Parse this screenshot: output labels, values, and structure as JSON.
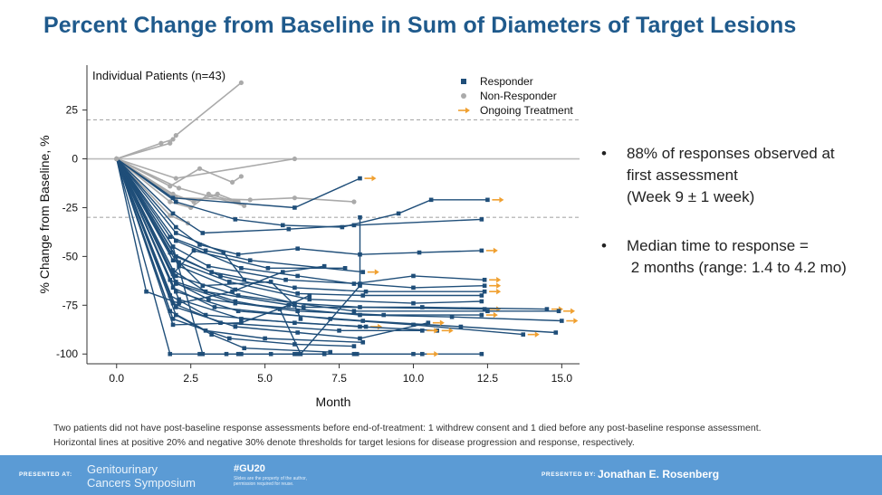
{
  "slide": {
    "title": "Percent Change from Baseline in Sum of Diameters of Target Lesions",
    "bullets": [
      {
        "lines": [
          "88% of responses observed at",
          "first assessment",
          "(Week 9 ± 1 week)"
        ]
      },
      {
        "lines": [
          "Median time to response =",
          " 2 months (range: 1.4 to 4.2 mo)"
        ]
      }
    ],
    "bullet_mark": "•",
    "footnote": [
      "Two patients did not have post-baseline response assessments before end-of-treatment: 1 withdrew consent and 1 died before any post-baseline response assessment.",
      "Horizontal lines at positive 20% and negative 30% denote thresholds for target lesions for disease progression and response, respectively."
    ],
    "footer": {
      "presented_at": "PRESENTED AT:",
      "conference_line1": "Genitourinary",
      "conference_line2": "Cancers Symposium",
      "hashtag": "#GU20",
      "hashtag_sub1": "Slides are the property of the author,",
      "hashtag_sub2": "permission required for reuse.",
      "presented_by": "PRESENTED BY:",
      "presenter": "Jonathan E. Rosenberg"
    }
  },
  "chart_data": {
    "type": "line",
    "annotation": "Individual Patients (n=43)",
    "xlabel": "Month",
    "ylabel": "% Change from Baseline, %",
    "xlim": [
      -1,
      15.6
    ],
    "ylim": [
      -105,
      48
    ],
    "xticks": [
      "0.0",
      "2.5",
      "5.0",
      "7.5",
      "10.0",
      "12.5",
      "15.0"
    ],
    "yticks": [
      "25",
      "0",
      "-25",
      "-50",
      "-75",
      "-100"
    ],
    "reference_lines": [
      20,
      0,
      -30
    ],
    "legend": [
      {
        "label": "Responder",
        "marker": "square",
        "color": "#1f4e79"
      },
      {
        "label": "Non-Responder",
        "marker": "circle",
        "color": "#aaaaaa"
      },
      {
        "label": "Ongoing Treatment",
        "marker": "arrow",
        "color": "#f0a030"
      }
    ],
    "legend_position": "top-right",
    "colors": {
      "responder": "#1f4e79",
      "non_responder": "#aaaaaa",
      "ongoing": "#f0a030",
      "zero_line": "#bbbbbb",
      "threshold_line": "#aaaaaa"
    },
    "series_nonresponder": [
      [
        [
          0,
          0
        ],
        [
          1.8,
          8
        ],
        [
          2.0,
          12
        ],
        [
          4.2,
          39
        ]
      ],
      [
        [
          0,
          0
        ],
        [
          1.5,
          8
        ],
        [
          1.9,
          10
        ]
      ],
      [
        [
          0,
          0
        ],
        [
          2.0,
          -10
        ],
        [
          6.0,
          0
        ]
      ],
      [
        [
          0,
          0
        ],
        [
          1.8,
          -14
        ],
        [
          2.8,
          -5
        ],
        [
          3.9,
          -12
        ],
        [
          4.2,
          -9
        ]
      ],
      [
        [
          0,
          0
        ],
        [
          1.9,
          -18
        ],
        [
          2.6,
          -22
        ],
        [
          3.4,
          -18
        ],
        [
          4.1,
          -22
        ]
      ],
      [
        [
          0,
          0
        ],
        [
          2.0,
          -20
        ],
        [
          4.5,
          -21
        ],
        [
          6.0,
          -20
        ],
        [
          8.0,
          -22
        ]
      ],
      [
        [
          0,
          0
        ],
        [
          1.8,
          -22
        ],
        [
          2.5,
          -25
        ],
        [
          3.1,
          -18
        ],
        [
          4.0,
          -22
        ]
      ],
      [
        [
          0,
          0
        ],
        [
          2.1,
          -15
        ],
        [
          4.3,
          -24
        ]
      ],
      [
        [
          0,
          0
        ],
        [
          1.8,
          -29
        ],
        [
          2.4,
          -33
        ]
      ]
    ],
    "series_responder": [
      {
        "p": [
          [
            0,
            0
          ],
          [
            1.9,
            -20
          ],
          [
            6.0,
            -25
          ],
          [
            8.2,
            -10
          ]
        ],
        "ongoing": true
      },
      {
        "p": [
          [
            0,
            0
          ],
          [
            2.0,
            -22
          ],
          [
            4.0,
            -31
          ],
          [
            5.6,
            -34
          ],
          [
            7.6,
            -35
          ],
          [
            9.5,
            -28
          ],
          [
            10.6,
            -21
          ],
          [
            12.5,
            -21
          ]
        ],
        "ongoing": true
      },
      {
        "p": [
          [
            0,
            0
          ],
          [
            1.9,
            -28
          ],
          [
            2.9,
            -38
          ],
          [
            5.8,
            -36
          ],
          [
            8.0,
            -34
          ],
          [
            12.3,
            -31
          ]
        ],
        "ongoing": false
      },
      {
        "p": [
          [
            0,
            0
          ],
          [
            2.0,
            -35
          ],
          [
            2.8,
            -44
          ],
          [
            4.1,
            -49
          ],
          [
            6.1,
            -46
          ],
          [
            8.2,
            -49
          ],
          [
            10.2,
            -48
          ],
          [
            12.3,
            -47
          ]
        ],
        "ongoing": true
      },
      {
        "p": [
          [
            0,
            0
          ],
          [
            1.8,
            -40
          ],
          [
            3.0,
            -47
          ],
          [
            4.5,
            -52
          ],
          [
            8.3,
            -58
          ]
        ],
        "ongoing": true
      },
      {
        "p": [
          [
            0,
            0
          ],
          [
            2.0,
            -42
          ],
          [
            4.2,
            -56
          ],
          [
            6.1,
            -60
          ],
          [
            8.0,
            -64
          ],
          [
            10.0,
            -60
          ],
          [
            12.4,
            -62
          ]
        ],
        "ongoing": true
      },
      {
        "p": [
          [
            0,
            0
          ],
          [
            1.9,
            -45
          ],
          [
            3.1,
            -55
          ],
          [
            5.7,
            -62
          ],
          [
            8.2,
            -64
          ],
          [
            10.0,
            -66
          ],
          [
            12.4,
            -65
          ]
        ],
        "ongoing": true
      },
      {
        "p": [
          [
            0,
            0
          ],
          [
            1.8,
            -48
          ],
          [
            3.2,
            -58
          ],
          [
            6.0,
            -66
          ],
          [
            8.4,
            -68
          ],
          [
            12.4,
            -68
          ]
        ],
        "ongoing": true
      },
      {
        "p": [
          [
            0,
            0
          ],
          [
            2.0,
            -50
          ],
          [
            3.5,
            -60
          ],
          [
            6.1,
            -69
          ],
          [
            8.3,
            -70
          ],
          [
            12.3,
            -70
          ]
        ],
        "ongoing": false
      },
      {
        "p": [
          [
            0,
            0
          ],
          [
            1.9,
            -52
          ],
          [
            3.8,
            -63
          ],
          [
            6.5,
            -72
          ],
          [
            10.0,
            -74
          ],
          [
            12.3,
            -73
          ]
        ],
        "ongoing": false
      },
      {
        "p": [
          [
            0,
            0
          ],
          [
            2.1,
            -55
          ],
          [
            4.0,
            -67
          ],
          [
            6.0,
            -74
          ],
          [
            8.2,
            -76
          ],
          [
            12.4,
            -77
          ]
        ],
        "ongoing": true
      },
      {
        "p": [
          [
            0,
            0
          ],
          [
            1.9,
            -57
          ],
          [
            3.0,
            -68
          ],
          [
            6.3,
            -76
          ],
          [
            10.3,
            -76
          ],
          [
            14.5,
            -77
          ]
        ],
        "ongoing": true
      },
      {
        "p": [
          [
            0,
            0
          ],
          [
            2.0,
            -60
          ],
          [
            4.1,
            -70
          ],
          [
            8.0,
            -78
          ],
          [
            12.5,
            -78
          ],
          [
            14.9,
            -78
          ]
        ],
        "ongoing": true
      },
      {
        "p": [
          [
            0,
            0
          ],
          [
            1.8,
            -62
          ],
          [
            3.1,
            -72
          ],
          [
            6.1,
            -78
          ],
          [
            9.0,
            -80
          ],
          [
            12.3,
            -80
          ]
        ],
        "ongoing": true
      },
      {
        "p": [
          [
            0,
            0
          ],
          [
            2.0,
            -64
          ],
          [
            4.0,
            -74
          ],
          [
            8.2,
            -80
          ],
          [
            11.3,
            -81
          ],
          [
            15.0,
            -83
          ]
        ],
        "ongoing": true
      },
      {
        "p": [
          [
            0,
            0
          ],
          [
            1.9,
            -66
          ],
          [
            3.3,
            -76
          ],
          [
            7.2,
            -82
          ],
          [
            10.0,
            -85
          ],
          [
            13.7,
            -90
          ]
        ],
        "ongoing": true
      },
      {
        "p": [
          [
            0,
            0
          ],
          [
            2.0,
            -68
          ],
          [
            4.1,
            -78
          ],
          [
            8.3,
            -83
          ],
          [
            11.6,
            -86
          ],
          [
            14.8,
            -89
          ]
        ],
        "ongoing": false
      },
      {
        "p": [
          [
            0,
            0
          ],
          [
            1.8,
            -70
          ],
          [
            3.0,
            -80
          ],
          [
            6.0,
            -84
          ],
          [
            8.4,
            -86
          ]
        ],
        "ongoing": true
      },
      {
        "p": [
          [
            0,
            0
          ],
          [
            2.1,
            -72
          ],
          [
            4.2,
            -82
          ],
          [
            8.2,
            -86
          ],
          [
            10.8,
            -88
          ]
        ],
        "ongoing": true
      },
      {
        "p": [
          [
            0,
            0
          ],
          [
            1.9,
            -74
          ],
          [
            3.5,
            -84
          ],
          [
            7.5,
            -88
          ],
          [
            10.3,
            -88
          ]
        ],
        "ongoing": true
      },
      {
        "p": [
          [
            0,
            0
          ],
          [
            2.0,
            -76
          ],
          [
            4.0,
            -86
          ],
          [
            6.1,
            -89
          ],
          [
            8.2,
            -92
          ],
          [
            10.5,
            -84
          ]
        ],
        "ongoing": true
      },
      {
        "p": [
          [
            0,
            0
          ],
          [
            1.8,
            -78
          ],
          [
            3.0,
            -88
          ],
          [
            5.0,
            -92
          ],
          [
            8.3,
            -94
          ]
        ],
        "ongoing": false
      },
      {
        "p": [
          [
            0,
            0
          ],
          [
            2.0,
            -80
          ],
          [
            3.2,
            -90
          ],
          [
            4.3,
            -97
          ],
          [
            7.2,
            -99
          ]
        ],
        "ongoing": false
      },
      {
        "p": [
          [
            0,
            0
          ],
          [
            1.9,
            -82
          ],
          [
            3.8,
            -92
          ],
          [
            6.0,
            -95
          ],
          [
            8.0,
            -96
          ]
        ],
        "ongoing": false
      },
      {
        "p": [
          [
            0,
            0
          ],
          [
            1.8,
            -100
          ],
          [
            2.8,
            -100
          ],
          [
            3.7,
            -100
          ],
          [
            4.2,
            -100
          ],
          [
            5.2,
            -100
          ],
          [
            6.0,
            -100
          ],
          [
            7.0,
            -100
          ],
          [
            8.0,
            -100
          ],
          [
            10.0,
            -100
          ],
          [
            12.3,
            -100
          ]
        ],
        "ongoing": false
      },
      {
        "p": [
          [
            0,
            0
          ],
          [
            1.9,
            -45
          ],
          [
            2.9,
            -100
          ],
          [
            4.1,
            -100
          ],
          [
            6.1,
            -100
          ],
          [
            8.1,
            -100
          ],
          [
            10.3,
            -100
          ]
        ],
        "ongoing": true
      },
      {
        "p": [
          [
            0,
            0
          ],
          [
            2.0,
            -63
          ],
          [
            4.0,
            -73
          ],
          [
            5.5,
            -77
          ],
          [
            6.2,
            -100
          ],
          [
            8.2,
            -65
          ],
          [
            8.2,
            -30
          ]
        ],
        "ongoing": false
      },
      {
        "p": [
          [
            0,
            0
          ],
          [
            1.9,
            -85
          ],
          [
            4.2,
            -84
          ],
          [
            5.8,
            -75
          ],
          [
            6.5,
            -70
          ]
        ],
        "ongoing": false
      },
      {
        "p": [
          [
            0,
            0
          ],
          [
            1.0,
            -68
          ],
          [
            2.1,
            -74
          ],
          [
            3.9,
            -68
          ],
          [
            5.6,
            -58
          ],
          [
            7.0,
            -55
          ]
        ],
        "ongoing": false
      },
      {
        "p": [
          [
            0,
            0
          ],
          [
            1.9,
            -59
          ],
          [
            2.6,
            -47
          ],
          [
            5.1,
            -56
          ],
          [
            7.7,
            -56
          ]
        ],
        "ongoing": false
      },
      {
        "p": [
          [
            0,
            0
          ],
          [
            2.0,
            -38
          ],
          [
            3.6,
            -48
          ],
          [
            4.3,
            -62
          ]
        ],
        "ongoing": false
      },
      {
        "p": [
          [
            0,
            0
          ],
          [
            2.1,
            -53
          ],
          [
            2.9,
            -65
          ],
          [
            5.2,
            -63
          ],
          [
            6.0,
            -75
          ],
          [
            6.2,
            -82
          ]
        ],
        "ongoing": false
      }
    ]
  }
}
